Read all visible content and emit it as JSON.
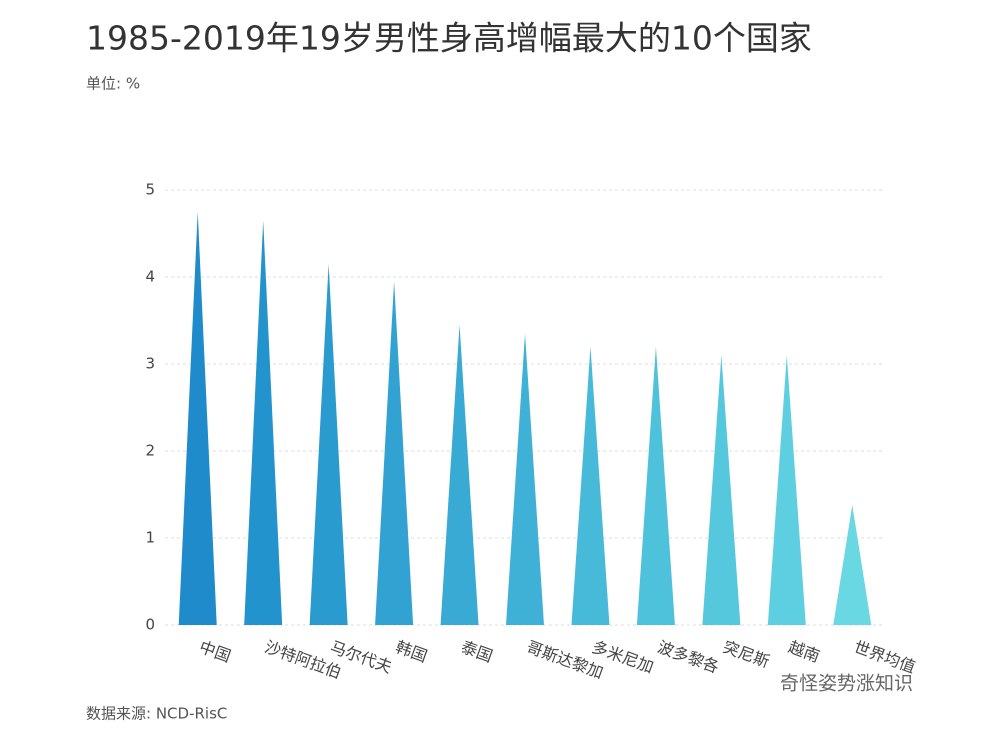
{
  "chart_data": {
    "type": "spike",
    "title": "1985-2019年19岁男性身高增幅最大的10个国家",
    "subtitle": "单位: %",
    "source": "数据来源: NCD-RisC",
    "watermark": "奇怪姿势涨知识",
    "categories": [
      "中国",
      "沙特阿拉伯",
      "马尔代夫",
      "韩国",
      "泰国",
      "哥斯达黎加",
      "多米尼加",
      "波多黎各",
      "突尼斯",
      "越南",
      "世界均值"
    ],
    "values": [
      4.75,
      4.65,
      4.15,
      3.95,
      3.45,
      3.35,
      3.2,
      3.2,
      3.1,
      3.1,
      1.38
    ],
    "colors": [
      "#1f8bcb",
      "#2393cd",
      "#2a9bcf",
      "#31a2d2",
      "#38aad4",
      "#3fb1d6",
      "#47b9d9",
      "#4ec1db",
      "#56c8dd",
      "#5ecfe0",
      "#6ad8e2"
    ],
    "ylim": [
      0,
      5
    ],
    "yticks": [
      0,
      1,
      2,
      3,
      4,
      5
    ],
    "grid": true
  }
}
